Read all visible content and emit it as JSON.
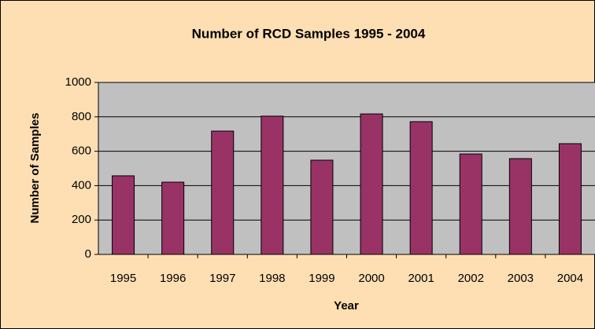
{
  "chart_data": {
    "type": "bar",
    "title": "Number of RCD Samples 1995 - 2004",
    "x_label": "Year",
    "y_label": "Number of Samples",
    "categories": [
      "1995",
      "1996",
      "1997",
      "1998",
      "1999",
      "2000",
      "2001",
      "2002",
      "2003",
      "2004"
    ],
    "values": [
      457,
      420,
      717,
      804,
      548,
      817,
      772,
      584,
      557,
      644
    ],
    "color": "#993366",
    "ylim": [
      0,
      1000
    ],
    "yticks": [
      0,
      200,
      400,
      600,
      800,
      1000
    ],
    "grid": true
  }
}
